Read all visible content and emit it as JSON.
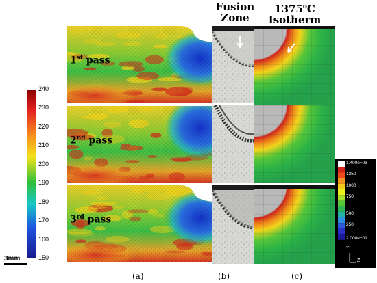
{
  "headers": {
    "fusion_line1": "Fusion",
    "fusion_line2": "Zone",
    "isotherm_line1": "1375",
    "isotherm_sup": "o",
    "isotherm_unit": "C",
    "isotherm_line2": "Isotherm"
  },
  "passes": [
    {
      "num": "1",
      "suffix": "st",
      "word": "pass"
    },
    {
      "num": "2",
      "suffix": "nd",
      "word": "pass"
    },
    {
      "num": "3",
      "suffix": "rd",
      "word": "pass"
    }
  ],
  "hardness_scale": {
    "ticks": [
      "240",
      "230",
      "220",
      "210",
      "200",
      "190",
      "180",
      "170",
      "160",
      "150"
    ],
    "min": 150,
    "max": 240
  },
  "temp_scale": {
    "labels": [
      "1.400e+03",
      "1250",
      "1000",
      "750",
      "500",
      "250",
      "2.000e+01"
    ]
  },
  "scale_bar": "3mm",
  "subfig_labels": {
    "a": "(a)",
    "b": "(b)",
    "c": "(c)"
  },
  "axis_labels": {
    "y": "Y",
    "z": "Z"
  },
  "colors": {
    "hot": "#d42a1c",
    "warm": "#f2d21b",
    "cool": "#27b64a",
    "cold": "#1f3fd1"
  }
}
